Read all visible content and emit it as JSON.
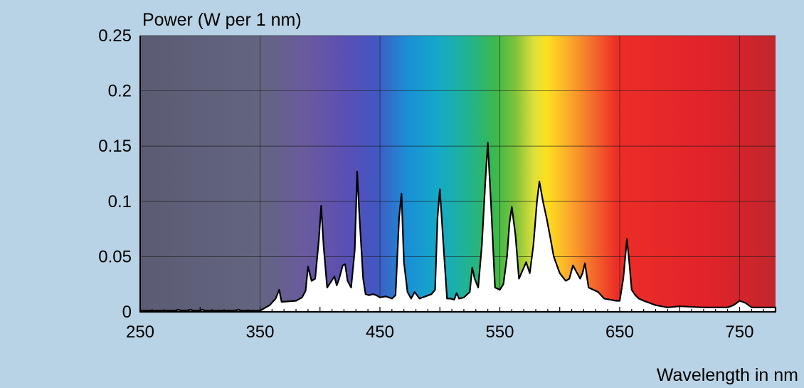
{
  "chart_data": {
    "type": "area",
    "title": "",
    "ylabel": "Power (W per 1 nm)",
    "xlabel": "Wavelength in nm",
    "xlim": [
      250,
      780
    ],
    "ylim": [
      0,
      0.25
    ],
    "x_ticks": [
      250,
      350,
      450,
      550,
      650,
      750
    ],
    "x_tick_labels": [
      "250",
      "350",
      "450",
      "550",
      "650",
      "750"
    ],
    "y_ticks": [
      0,
      0.05,
      0.1,
      0.15,
      0.2,
      0.25
    ],
    "y_tick_labels": [
      "0",
      "0.05",
      "0.1",
      "0.15",
      "0.2",
      "0.25"
    ],
    "grid": true,
    "legend": "none",
    "colors": {
      "background": "#b9d3e6",
      "uv_region": "#5a5a72",
      "series_fill": "#ffffff",
      "series_stroke": "#000000",
      "grid": "#1a1a1a"
    },
    "series": [
      {
        "x": [
          250,
          280,
          282,
          284,
          290,
          292,
          294,
          300,
          302,
          304,
          330,
          332,
          334,
          350,
          358,
          363,
          366,
          368,
          380,
          385,
          388,
          390,
          393,
          396,
          399,
          401,
          403,
          406,
          409,
          412,
          414,
          416,
          419,
          421,
          423,
          426,
          429,
          431,
          433,
          436,
          438,
          441,
          444,
          447,
          450,
          455,
          460,
          463,
          466,
          468,
          470,
          473,
          476,
          479,
          483,
          488,
          493,
          496,
          498,
          500,
          503,
          506,
          509,
          512,
          514,
          516,
          520,
          525,
          527,
          529,
          532,
          535,
          538,
          540,
          543,
          546,
          550,
          553,
          556,
          558,
          560,
          563,
          566,
          570,
          572,
          575,
          578,
          581,
          583,
          586,
          589,
          592,
          595,
          600,
          605,
          608,
          611,
          614,
          617,
          619,
          621,
          624,
          628,
          632,
          637,
          642,
          647,
          650,
          653,
          656,
          658,
          660,
          663,
          666,
          670,
          675,
          680,
          690,
          700,
          720,
          740,
          745,
          750,
          755,
          760,
          770,
          780
        ],
        "values": [
          0.001,
          0.001,
          0.002,
          0.001,
          0.001,
          0.002,
          0.001,
          0.001,
          0.002,
          0.001,
          0.001,
          0.002,
          0.001,
          0.001,
          0.006,
          0.012,
          0.02,
          0.009,
          0.01,
          0.013,
          0.019,
          0.041,
          0.028,
          0.03,
          0.065,
          0.096,
          0.06,
          0.022,
          0.027,
          0.032,
          0.024,
          0.03,
          0.042,
          0.043,
          0.028,
          0.022,
          0.056,
          0.127,
          0.085,
          0.03,
          0.016,
          0.015,
          0.016,
          0.015,
          0.013,
          0.014,
          0.012,
          0.015,
          0.085,
          0.107,
          0.045,
          0.018,
          0.012,
          0.018,
          0.012,
          0.014,
          0.016,
          0.02,
          0.085,
          0.111,
          0.06,
          0.012,
          0.012,
          0.011,
          0.017,
          0.012,
          0.013,
          0.018,
          0.04,
          0.03,
          0.022,
          0.06,
          0.12,
          0.153,
          0.09,
          0.022,
          0.02,
          0.025,
          0.05,
          0.08,
          0.095,
          0.07,
          0.03,
          0.04,
          0.045,
          0.035,
          0.06,
          0.1,
          0.118,
          0.1,
          0.085,
          0.068,
          0.05,
          0.035,
          0.028,
          0.03,
          0.042,
          0.036,
          0.03,
          0.035,
          0.044,
          0.022,
          0.02,
          0.018,
          0.012,
          0.011,
          0.01,
          0.01,
          0.03,
          0.066,
          0.045,
          0.02,
          0.015,
          0.012,
          0.01,
          0.008,
          0.006,
          0.004,
          0.005,
          0.004,
          0.004,
          0.006,
          0.01,
          0.008,
          0.004,
          0.004,
          0.004
        ]
      }
    ]
  }
}
